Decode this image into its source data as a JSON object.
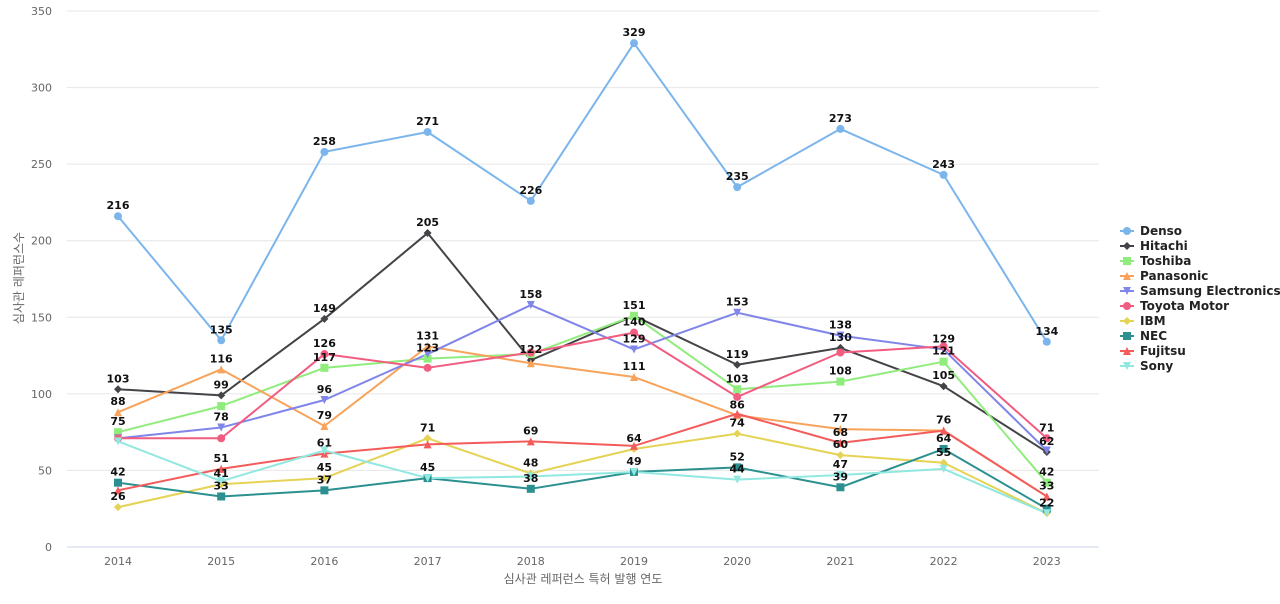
{
  "chart_data": {
    "type": "line",
    "title": "",
    "xlabel": "심사관 레퍼런스 특허 발행 연도",
    "ylabel": "심사관 레퍼런스수",
    "ylim": [
      0,
      350
    ],
    "yticks": [
      0,
      50,
      100,
      150,
      200,
      250,
      300,
      350
    ],
    "grid": true,
    "legend_position": "right",
    "categories": [
      "2014",
      "2015",
      "2016",
      "2017",
      "2018",
      "2019",
      "2020",
      "2021",
      "2022",
      "2023"
    ],
    "series": [
      {
        "name": "Denso",
        "color": "#7cb5ec",
        "marker": "circle",
        "values": [
          216,
          135,
          258,
          271,
          226,
          329,
          235,
          273,
          243,
          134
        ]
      },
      {
        "name": "Hitachi",
        "color": "#434348",
        "marker": "diamond",
        "values": [
          103,
          99,
          149,
          205,
          122,
          151,
          119,
          130,
          105,
          62
        ]
      },
      {
        "name": "Toshiba",
        "color": "#90ed7d",
        "marker": "square",
        "values": [
          75,
          92,
          117,
          123,
          126,
          151,
          103,
          108,
          121,
          42
        ]
      },
      {
        "name": "Panasonic",
        "color": "#f7a35c",
        "marker": "triangle",
        "values": [
          88,
          116,
          79,
          131,
          120,
          111,
          86,
          77,
          76,
          33
        ]
      },
      {
        "name": "Samsung Electronics",
        "color": "#8085e9",
        "marker": "triangle-down",
        "values": [
          71,
          78,
          96,
          126,
          158,
          129,
          153,
          138,
          129,
          63
        ]
      },
      {
        "name": "Toyota Motor",
        "color": "#f15c80",
        "marker": "circle",
        "values": [
          71,
          71,
          126,
          117,
          127,
          140,
          98,
          127,
          131,
          71
        ]
      },
      {
        "name": "IBM",
        "color": "#e4d354",
        "marker": "diamond",
        "values": [
          26,
          41,
          45,
          71,
          48,
          64,
          74,
          60,
          55,
          22
        ]
      },
      {
        "name": "NEC",
        "color": "#2b908f",
        "marker": "square",
        "values": [
          42,
          33,
          37,
          45,
          38,
          49,
          52,
          39,
          64,
          25
        ]
      },
      {
        "name": "Fujitsu",
        "color": "#f45b5b",
        "marker": "triangle",
        "values": [
          37,
          51,
          61,
          67,
          69,
          66,
          87,
          68,
          76,
          33
        ]
      },
      {
        "name": "Sony",
        "color": "#91e8e1",
        "marker": "triangle-down",
        "values": [
          69,
          43,
          63,
          45,
          46,
          49,
          44,
          47,
          51,
          22
        ]
      }
    ],
    "data_labels": [
      {
        "x": "2014",
        "y": 216,
        "text": "216"
      },
      {
        "x": "2015",
        "y": 135,
        "text": "135"
      },
      {
        "x": "2016",
        "y": 258,
        "text": "258"
      },
      {
        "x": "2017",
        "y": 271,
        "text": "271"
      },
      {
        "x": "2018",
        "y": 226,
        "text": "226"
      },
      {
        "x": "2019",
        "y": 329,
        "text": "329"
      },
      {
        "x": "2020",
        "y": 235,
        "text": "235"
      },
      {
        "x": "2021",
        "y": 273,
        "text": "273"
      },
      {
        "x": "2022",
        "y": 243,
        "text": "243"
      },
      {
        "x": "2023",
        "y": 134,
        "text": "134"
      },
      {
        "x": "2014",
        "y": 103,
        "text": "103"
      },
      {
        "x": "2015",
        "y": 99,
        "text": "99"
      },
      {
        "x": "2016",
        "y": 149,
        "text": "149"
      },
      {
        "x": "2017",
        "y": 205,
        "text": "205"
      },
      {
        "x": "2019",
        "y": 151,
        "text": "151"
      },
      {
        "x": "2020",
        "y": 119,
        "text": "119"
      },
      {
        "x": "2021",
        "y": 130,
        "text": "130"
      },
      {
        "x": "2022",
        "y": 105,
        "text": "105"
      },
      {
        "x": "2023",
        "y": 62,
        "text": "62"
      },
      {
        "x": "2014",
        "y": 88,
        "text": "88"
      },
      {
        "x": "2015",
        "y": 116,
        "text": "116"
      },
      {
        "x": "2016",
        "y": 79,
        "text": "79"
      },
      {
        "x": "2017",
        "y": 131,
        "text": "131"
      },
      {
        "x": "2019",
        "y": 111,
        "text": "111"
      },
      {
        "x": "2020",
        "y": 86,
        "text": "86"
      },
      {
        "x": "2021",
        "y": 77,
        "text": "77"
      },
      {
        "x": "2014",
        "y": 75,
        "text": "75"
      },
      {
        "x": "2016",
        "y": 117,
        "text": "117"
      },
      {
        "x": "2017",
        "y": 123,
        "text": "123"
      },
      {
        "x": "2018",
        "y": 122,
        "text": "122"
      },
      {
        "x": "2020",
        "y": 103,
        "text": "103"
      },
      {
        "x": "2021",
        "y": 108,
        "text": "108"
      },
      {
        "x": "2022",
        "y": 121,
        "text": "121"
      },
      {
        "x": "2023",
        "y": 42,
        "text": "42"
      },
      {
        "x": "2015",
        "y": 78,
        "text": "78"
      },
      {
        "x": "2016",
        "y": 96,
        "text": "96"
      },
      {
        "x": "2016",
        "y": 126,
        "text": "126"
      },
      {
        "x": "2018",
        "y": 158,
        "text": "158"
      },
      {
        "x": "2019",
        "y": 129,
        "text": "129"
      },
      {
        "x": "2020",
        "y": 153,
        "text": "153"
      },
      {
        "x": "2021",
        "y": 138,
        "text": "138"
      },
      {
        "x": "2022",
        "y": 129,
        "text": "129"
      },
      {
        "x": "2019",
        "y": 140,
        "text": "140"
      },
      {
        "x": "2023",
        "y": 71,
        "text": "71"
      },
      {
        "x": "2014",
        "y": 26,
        "text": "26"
      },
      {
        "x": "2015",
        "y": 41,
        "text": "41"
      },
      {
        "x": "2016",
        "y": 45,
        "text": "45"
      },
      {
        "x": "2017",
        "y": 71,
        "text": "71"
      },
      {
        "x": "2018",
        "y": 48,
        "text": "48"
      },
      {
        "x": "2019",
        "y": 64,
        "text": "64"
      },
      {
        "x": "2020",
        "y": 74,
        "text": "74"
      },
      {
        "x": "2021",
        "y": 60,
        "text": "60"
      },
      {
        "x": "2022",
        "y": 55,
        "text": "55"
      },
      {
        "x": "2023",
        "y": 22,
        "text": "22"
      },
      {
        "x": "2014",
        "y": 42,
        "text": "42"
      },
      {
        "x": "2015",
        "y": 33,
        "text": "33"
      },
      {
        "x": "2016",
        "y": 37,
        "text": "37"
      },
      {
        "x": "2017",
        "y": 45,
        "text": "45"
      },
      {
        "x": "2018",
        "y": 38,
        "text": "38"
      },
      {
        "x": "2019",
        "y": 49,
        "text": "49"
      },
      {
        "x": "2020",
        "y": 52,
        "text": "52"
      },
      {
        "x": "2021",
        "y": 39,
        "text": "39"
      },
      {
        "x": "2022",
        "y": 64,
        "text": "64"
      },
      {
        "x": "2015",
        "y": 51,
        "text": "51"
      },
      {
        "x": "2016",
        "y": 61,
        "text": "61"
      },
      {
        "x": "2018",
        "y": 69,
        "text": "69"
      },
      {
        "x": "2021",
        "y": 68,
        "text": "68"
      },
      {
        "x": "2022",
        "y": 76,
        "text": "76"
      },
      {
        "x": "2023",
        "y": 33,
        "text": "33"
      },
      {
        "x": "2020",
        "y": 44,
        "text": "44"
      },
      {
        "x": "2021",
        "y": 47,
        "text": "47"
      }
    ]
  }
}
